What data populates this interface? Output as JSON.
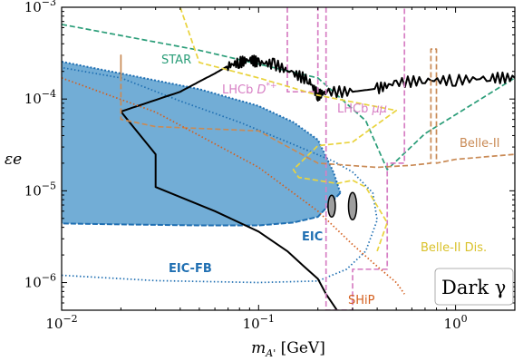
{
  "chart_data": {
    "type": "line",
    "title": "",
    "xlabel": "m_{A'} [GeV]",
    "ylabel": "εe",
    "xscale": "log",
    "yscale": "log",
    "xlim": [
      0.01,
      2
    ],
    "ylim": [
      5e-07,
      0.001
    ],
    "grid": false,
    "x_ticks": [
      {
        "value": 0.01,
        "label": "10^{-2}",
        "base": "10",
        "exp": "−2"
      },
      {
        "value": 0.1,
        "label": "10^{-1}",
        "base": "10",
        "exp": "−1"
      },
      {
        "value": 1,
        "label": "10^{0}",
        "base": "10",
        "exp": "0"
      }
    ],
    "y_ticks": [
      {
        "value": 1e-06,
        "label": "10^{-6}",
        "base": "10",
        "exp": "−6"
      },
      {
        "value": 1e-05,
        "label": "10^{-5}",
        "base": "10",
        "exp": "−5"
      },
      {
        "value": 0.0001,
        "label": "10^{-4}",
        "base": "10",
        "exp": "−4"
      },
      {
        "value": 0.001,
        "label": "10^{-3}",
        "base": "10",
        "exp": "−3"
      }
    ],
    "corner_label": "Dark γ",
    "series": [
      {
        "name": "EIC",
        "style": "filled-dashed",
        "color": "#1f6fb2",
        "fill": "#6aa9d4",
        "upper": [
          [
            0.01,
            0.000255
          ],
          [
            0.02,
            0.00019
          ],
          [
            0.05,
            0.000128
          ],
          [
            0.1,
            8.4e-05
          ],
          [
            0.15,
            5.6e-05
          ],
          [
            0.2,
            3.6e-05
          ],
          [
            0.24,
            1.6e-05
          ],
          [
            0.26,
            9.5e-06
          ]
        ],
        "lower": [
          [
            0.26,
            9.5e-06
          ],
          [
            0.2,
            5.2e-06
          ],
          [
            0.15,
            4.5e-06
          ],
          [
            0.1,
            4.2e-06
          ],
          [
            0.05,
            4.2e-06
          ],
          [
            0.02,
            4.3e-06
          ],
          [
            0.01,
            4.4e-06
          ]
        ]
      },
      {
        "name": "EIC-FB",
        "style": "dotted",
        "color": "#1f6fb2",
        "points": [
          [
            0.01,
            1.2e-06
          ],
          [
            0.03,
            1.05e-06
          ],
          [
            0.1,
            1e-06
          ],
          [
            0.2,
            1.04e-06
          ],
          [
            0.28,
            1.4e-06
          ],
          [
            0.35,
            2.2e-06
          ],
          [
            0.4,
            4.8e-06
          ],
          [
            0.38,
            9.5e-06
          ],
          [
            0.3,
            1.6e-05
          ],
          [
            0.24,
            2.1e-05
          ],
          [
            0.15,
            3.2e-05
          ],
          [
            0.08,
            5.6e-05
          ],
          [
            0.04,
            9.5e-05
          ],
          [
            0.02,
            0.00017
          ],
          [
            0.01,
            0.00022
          ]
        ]
      },
      {
        "name": "STAR",
        "style": "dashed",
        "color": "#2a9d78",
        "points": [
          [
            0.01,
            0.00065
          ],
          [
            0.05,
            0.00034
          ],
          [
            0.1,
            0.00024
          ],
          [
            0.2,
            0.00017
          ],
          [
            0.35,
            5.8e-05
          ],
          [
            0.45,
            1.7e-05
          ],
          [
            0.7,
            4.2e-05
          ],
          [
            2,
            0.00017
          ]
        ]
      },
      {
        "name": "",
        "style": "solid",
        "color": "#000000",
        "points": [
          [
            0.02,
            7.3e-05
          ],
          [
            0.03,
            2.5e-05
          ],
          [
            0.03,
            1.6e-05
          ],
          [
            0.03,
            1.1e-05
          ],
          [
            0.06,
            6e-06
          ],
          [
            0.1,
            3.6e-06
          ],
          [
            0.14,
            2.2e-06
          ],
          [
            0.17,
            1.5e-06
          ],
          [
            0.2,
            1.1e-06
          ],
          [
            0.22,
            7.5e-07
          ],
          [
            0.25,
            5e-07
          ]
        ]
      },
      {
        "name": "",
        "style": "solid-boundary",
        "color": "#000000",
        "points": [
          [
            0.02,
            7.3e-05
          ],
          [
            0.04,
            0.00012
          ],
          [
            0.05,
            0.000155
          ],
          [
            0.06,
            0.00019
          ],
          [
            0.07,
            0.00023
          ],
          [
            0.08,
            0.00025
          ],
          [
            0.09,
            0.00027
          ],
          [
            0.1,
            0.00025
          ],
          [
            0.12,
            0.00024
          ],
          [
            0.15,
            0.00019
          ],
          [
            0.18,
            0.00016
          ],
          [
            0.2,
            0.00011
          ],
          [
            0.22,
            0.00012
          ],
          [
            0.3,
            0.00012
          ],
          [
            0.4,
            0.00013
          ],
          [
            0.5,
            0.00015
          ],
          [
            0.7,
            0.00016
          ],
          [
            1,
            0.00016
          ],
          [
            1.5,
            0.00017
          ],
          [
            2,
            0.00017
          ]
        ]
      },
      {
        "name": "LHCb D*+",
        "style": "dashed",
        "color": "#d77fc4",
        "points": [
          [
            0.14,
            0.001
          ],
          [
            0.14,
            0.00012
          ],
          [
            0.2,
            0.00012
          ],
          [
            0.2,
            0.001
          ]
        ]
      },
      {
        "name": "LHCb μμ",
        "style": "dashed",
        "color": "#d77fc4",
        "points": [
          [
            0.22,
            0.001
          ],
          [
            0.22,
            5e-07
          ],
          [
            0.3,
            5e-07
          ],
          [
            0.3,
            1.4e-06
          ],
          [
            0.45,
            1.4e-06
          ],
          [
            0.45,
            2e-05
          ],
          [
            0.55,
            2e-05
          ],
          [
            0.55,
            0.001
          ]
        ]
      },
      {
        "name": "Belle-II",
        "style": "dashed",
        "color": "#c98a55",
        "points": [
          [
            0.02,
            0.00018
          ],
          [
            0.02,
            0.0003
          ],
          [
            0.02,
            6e-05
          ],
          [
            0.03,
            5e-05
          ],
          [
            0.1,
            4.5e-05
          ],
          [
            0.2,
            2e-05
          ],
          [
            0.4,
            1.8e-05
          ],
          [
            0.6,
            1.9e-05
          ],
          [
            0.75,
            2e-05
          ],
          [
            0.75,
            0.00035
          ],
          [
            0.8,
            0.00035
          ],
          [
            0.8,
            2e-05
          ],
          [
            1,
            2.2e-05
          ],
          [
            2,
            2.5e-05
          ]
        ]
      },
      {
        "name": "Belle-II Dis.",
        "style": "dashed",
        "color": "#e9d33d",
        "points": [
          [
            0.04,
            0.001
          ],
          [
            0.05,
            0.00025
          ],
          [
            0.1,
            0.00017
          ],
          [
            0.2,
            0.00011
          ],
          [
            0.5,
            7.5e-05
          ],
          [
            0.3,
            3.4e-05
          ],
          [
            0.2,
            3.1e-05
          ],
          [
            0.15,
            1.7e-05
          ],
          [
            0.16,
            1.4e-05
          ],
          [
            0.25,
            1.2e-05
          ],
          [
            0.3,
            1.3e-05
          ],
          [
            0.35,
            1.1e-05
          ],
          [
            0.45,
            4.5e-06
          ],
          [
            0.4,
            2.2e-06
          ]
        ]
      },
      {
        "name": "SHiP",
        "style": "dotted",
        "color": "#d45f1e",
        "points": [
          [
            0.01,
            0.00017
          ],
          [
            0.03,
            7.2e-05
          ],
          [
            0.05,
            4e-05
          ],
          [
            0.1,
            1.8e-05
          ],
          [
            0.2,
            6e-06
          ],
          [
            0.3,
            2.6e-06
          ],
          [
            0.4,
            1.5e-06
          ],
          [
            0.5,
            1e-06
          ],
          [
            0.55,
            7.5e-07
          ]
        ]
      }
    ],
    "annotations": [
      {
        "text": "STAR",
        "color": "#2a9d78"
      },
      {
        "text": "LHCb D*+",
        "color": "#d77fc4"
      },
      {
        "text": "LHCb μμ",
        "color": "#d77fc4"
      },
      {
        "text": "Belle-II",
        "color": "#c98a55"
      },
      {
        "text": "EIC",
        "color": "#1f6fb2"
      },
      {
        "text": "EIC-FB",
        "color": "#1f6fb2"
      },
      {
        "text": "Belle-II Dis.",
        "color": "#e9d33d"
      },
      {
        "text": "SHiP",
        "color": "#d45f1e"
      }
    ]
  }
}
